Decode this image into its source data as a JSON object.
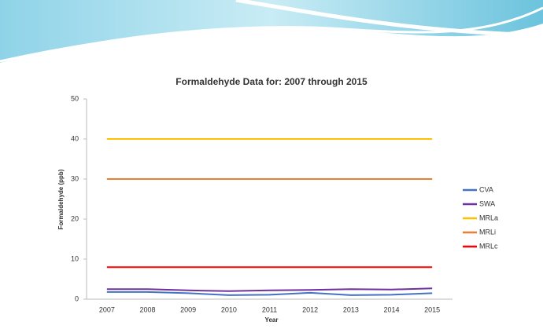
{
  "chart_data": {
    "type": "line",
    "title": "Formaldehyde Data for: 2007 through 2015",
    "x_label": "Year",
    "y_label": "Formaldehyde (ppb)",
    "categories": [
      "2007",
      "2008",
      "2009",
      "2010",
      "2011",
      "2012",
      "2013",
      "2014",
      "2015"
    ],
    "series": [
      {
        "name": "CVA",
        "color": "#4472c4",
        "values": [
          1.8,
          1.8,
          1.5,
          1.0,
          1.1,
          1.6,
          1.0,
          1.1,
          1.5
        ]
      },
      {
        "name": "SWA",
        "color": "#7030a0",
        "values": [
          2.5,
          2.5,
          2.2,
          2.0,
          2.2,
          2.3,
          2.5,
          2.4,
          2.7
        ]
      },
      {
        "name": "MRLa",
        "color": "#ffc000",
        "values": [
          40,
          40,
          40,
          40,
          40,
          40,
          40,
          40,
          40
        ]
      },
      {
        "name": "MRLi",
        "color": "#ed7d31",
        "values": [
          30,
          30,
          30,
          30,
          30,
          30,
          30,
          30,
          30
        ]
      },
      {
        "name": "MRLc",
        "color": "#ff0000",
        "values": [
          8,
          8,
          8,
          8,
          8,
          8,
          8,
          8,
          8
        ]
      }
    ],
    "ylim": [
      0,
      50
    ],
    "yticks": [
      0,
      10,
      20,
      30,
      40,
      50
    ],
    "grid": false,
    "legend": "right"
  }
}
